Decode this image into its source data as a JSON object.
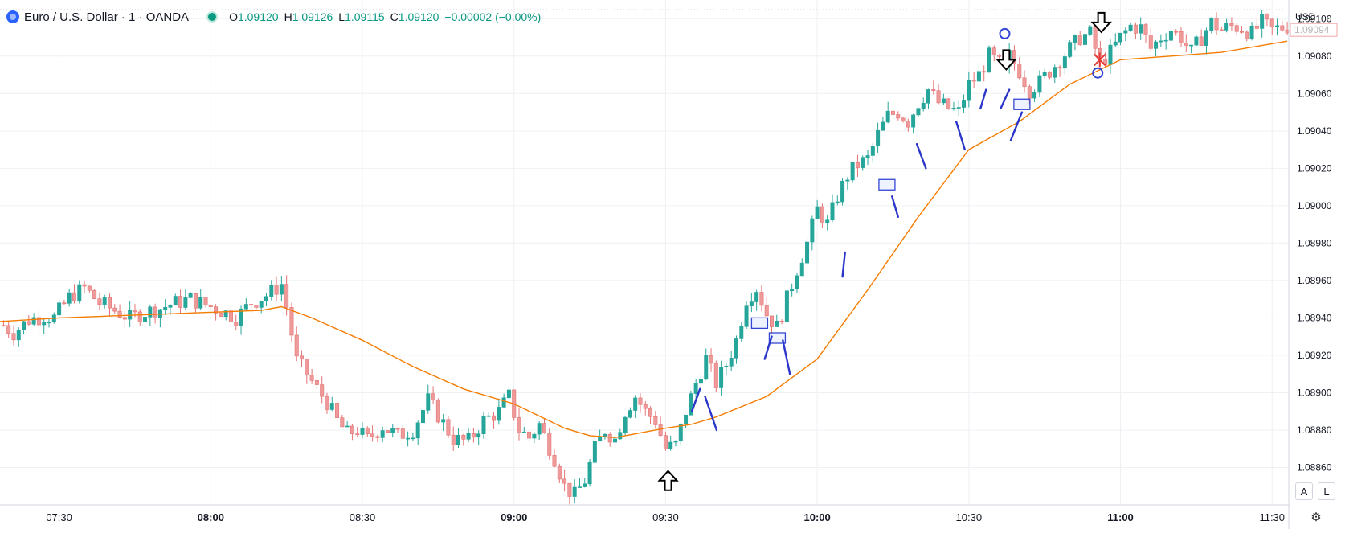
{
  "legend": {
    "symbol": "Euro / U.S. Dollar · 1 · OANDA",
    "o_label": "O",
    "o_value": "1.09120",
    "h_label": "H",
    "h_value": "1.09126",
    "l_label": "L",
    "l_value": "1.09115",
    "c_label": "C",
    "c_value": "1.09120",
    "change": "−0.00002 (−0.00%)"
  },
  "currency_selector": "USD",
  "buttons": {
    "auto": "A",
    "log": "L"
  },
  "icons": {
    "settings": "gear-icon",
    "logo": "oanda-logo-icon"
  },
  "colors": {
    "up": "#26a69a",
    "down": "#ef9a9a",
    "ma": "#f57c00",
    "annotation": "#2a35c9",
    "marker": "#e53935"
  },
  "chart_data": {
    "type": "candlestick",
    "timeframe": "1 minute",
    "y_axis": {
      "range": [
        1.0884,
        1.0911
      ],
      "ticks": [
        "1.09100",
        "1.09080",
        "1.09060",
        "1.09040",
        "1.09020",
        "1.09000",
        "1.08980",
        "1.08960",
        "1.08940",
        "1.08920",
        "1.08900",
        "1.08880",
        "1.08860"
      ],
      "tick_values": [
        1.091,
        1.0908,
        1.0906,
        1.0904,
        1.0902,
        1.09,
        1.0898,
        1.0896,
        1.0894,
        1.0892,
        1.089,
        1.0888,
        1.0886
      ],
      "last_price": "1.09094",
      "last_price_value": 1.09094
    },
    "x_axis": {
      "ticks": [
        {
          "label": "07:30",
          "minute": 450
        },
        {
          "label": "08:00",
          "minute": 480,
          "bold": true
        },
        {
          "label": "08:30",
          "minute": 510
        },
        {
          "label": "09:00",
          "minute": 540,
          "bold": true
        },
        {
          "label": "09:30",
          "minute": 570
        },
        {
          "label": "10:00",
          "minute": 600,
          "bold": true
        },
        {
          "label": "10:30",
          "minute": 630
        },
        {
          "label": "11:00",
          "minute": 660,
          "bold": true
        },
        {
          "label": "11:30",
          "minute": 690
        }
      ],
      "range_minutes": [
        438.3,
        693.3
      ]
    },
    "price_path": [
      [
        438,
        1.08938
      ],
      [
        441,
        1.08932
      ],
      [
        444,
        1.08939
      ],
      [
        447,
        1.08941
      ],
      [
        449,
        1.0894
      ],
      [
        452,
        1.08951
      ],
      [
        455,
        1.08956
      ],
      [
        458,
        1.08948
      ],
      [
        461,
        1.08944
      ],
      [
        464,
        1.0894
      ],
      [
        467,
        1.08943
      ],
      [
        470,
        1.08945
      ],
      [
        473,
        1.08948
      ],
      [
        476,
        1.0895
      ],
      [
        479,
        1.08947
      ],
      [
        482,
        1.08944
      ],
      [
        485,
        1.0894
      ],
      [
        488,
        1.08948
      ],
      [
        491,
        1.08952
      ],
      [
        494,
        1.08958
      ],
      [
        495,
        1.08946
      ],
      [
        497,
        1.08917
      ],
      [
        499,
        1.0891
      ],
      [
        501,
        1.08902
      ],
      [
        503,
        1.08895
      ],
      [
        505,
        1.08885
      ],
      [
        507,
        1.08878
      ],
      [
        509,
        1.0888
      ],
      [
        511,
        1.08875
      ],
      [
        514,
        1.08882
      ],
      [
        517,
        1.08877
      ],
      [
        520,
        1.0888
      ],
      [
        523,
        1.08896
      ],
      [
        525,
        1.08888
      ],
      [
        528,
        1.08875
      ],
      [
        531,
        1.08874
      ],
      [
        534,
        1.08885
      ],
      [
        537,
        1.0889
      ],
      [
        539,
        1.08898
      ],
      [
        541,
        1.0888
      ],
      [
        543,
        1.08876
      ],
      [
        545,
        1.08883
      ],
      [
        548,
        1.08865
      ],
      [
        550,
        1.0885
      ],
      [
        552,
        1.08845
      ],
      [
        554,
        1.08853
      ],
      [
        556,
        1.0887
      ],
      [
        558,
        1.0888
      ],
      [
        560,
        1.08875
      ],
      [
        562,
        1.0889
      ],
      [
        564,
        1.08898
      ],
      [
        566,
        1.0889
      ],
      [
        568,
        1.08885
      ],
      [
        570,
        1.0887
      ],
      [
        572,
        1.08872
      ],
      [
        574,
        1.0889
      ],
      [
        576,
        1.08905
      ],
      [
        578,
        1.08918
      ],
      [
        580,
        1.08905
      ],
      [
        582,
        1.08915
      ],
      [
        584,
        1.08928
      ],
      [
        586,
        1.0895
      ],
      [
        588,
        1.08956
      ],
      [
        590,
        1.08942
      ],
      [
        592,
        1.08935
      ],
      [
        594,
        1.0895
      ],
      [
        596,
        1.08966
      ],
      [
        598,
        1.0898
      ],
      [
        600,
        1.08998
      ],
      [
        602,
        1.0899
      ],
      [
        604,
        1.09005
      ],
      [
        606,
        1.09016
      ],
      [
        608,
        1.09022
      ],
      [
        610,
        1.09025
      ],
      [
        612,
        1.09038
      ],
      [
        614,
        1.09048
      ],
      [
        616,
        1.0905
      ],
      [
        618,
        1.09045
      ],
      [
        620,
        1.09055
      ],
      [
        622,
        1.09062
      ],
      [
        624,
        1.09055
      ],
      [
        626,
        1.09052
      ],
      [
        628,
        1.0905
      ],
      [
        630,
        1.09065
      ],
      [
        632,
        1.0907
      ],
      [
        634,
        1.0908
      ],
      [
        636,
        1.09076
      ],
      [
        637,
        1.09072
      ],
      [
        638,
        1.0908
      ],
      [
        640,
        1.09072
      ],
      [
        642,
        1.09062
      ],
      [
        644,
        1.09066
      ],
      [
        646,
        1.09072
      ],
      [
        648,
        1.09078
      ],
      [
        650,
        1.09084
      ],
      [
        652,
        1.0909
      ],
      [
        654,
        1.09092
      ],
      [
        656,
        1.09076
      ],
      [
        658,
        1.09082
      ],
      [
        660,
        1.0909
      ],
      [
        662,
        1.09096
      ],
      [
        664,
        1.09095
      ],
      [
        666,
        1.09084
      ],
      [
        668,
        1.0909
      ],
      [
        670,
        1.09094
      ],
      [
        672,
        1.0909
      ],
      [
        674,
        1.09082
      ],
      [
        676,
        1.0909
      ],
      [
        678,
        1.09098
      ],
      [
        680,
        1.09094
      ],
      [
        682,
        1.09096
      ],
      [
        684,
        1.09095
      ],
      [
        686,
        1.09092
      ],
      [
        688,
        1.09098
      ],
      [
        690,
        1.09094
      ],
      [
        693,
        1.09096
      ]
    ],
    "moving_average": [
      [
        438,
        1.08938
      ],
      [
        450,
        1.0894
      ],
      [
        470,
        1.08942
      ],
      [
        480,
        1.08943
      ],
      [
        490,
        1.08944
      ],
      [
        494,
        1.08946
      ],
      [
        500,
        1.0894
      ],
      [
        510,
        1.08928
      ],
      [
        520,
        1.08914
      ],
      [
        530,
        1.08902
      ],
      [
        540,
        1.08894
      ],
      [
        550,
        1.08881
      ],
      [
        555,
        1.08877
      ],
      [
        560,
        1.08876
      ],
      [
        570,
        1.08881
      ],
      [
        575,
        1.08883
      ],
      [
        580,
        1.08887
      ],
      [
        590,
        1.08898
      ],
      [
        600,
        1.08918
      ],
      [
        610,
        1.08955
      ],
      [
        620,
        1.08994
      ],
      [
        630,
        1.0903
      ],
      [
        640,
        1.09045
      ],
      [
        650,
        1.09065
      ],
      [
        660,
        1.09078
      ],
      [
        670,
        1.0908
      ],
      [
        680,
        1.09082
      ],
      [
        693,
        1.09088
      ]
    ],
    "annotations": {
      "arrows": [
        {
          "direction": "up",
          "minute": 570.5,
          "price": 1.08853
        },
        {
          "direction": "down",
          "minute": 637.4,
          "price": 1.09078
        },
        {
          "direction": "down",
          "minute": 656.2,
          "price": 1.09098
        }
      ],
      "circles": [
        {
          "minute": 637.1,
          "price": 1.09092
        },
        {
          "minute": 655.5,
          "price": 1.09071
        }
      ],
      "cross": {
        "minute": 655.9,
        "price": 1.09078
      },
      "boxes": [
        {
          "minute": 588.6,
          "price": 1.08937
        },
        {
          "minute": 592.1,
          "price": 1.08929
        },
        {
          "minute": 613.8,
          "price": 1.09011
        },
        {
          "minute": 640.5,
          "price": 1.09054
        }
      ],
      "strokes": [
        {
          "from": [
            575.2,
            1.0889
          ],
          "to": [
            576.8,
            1.08902
          ]
        },
        {
          "from": [
            577.8,
            1.08898
          ],
          "to": [
            580.1,
            1.0888
          ]
        },
        {
          "from": [
            589.6,
            1.08918
          ],
          "to": [
            591.0,
            1.0893
          ]
        },
        {
          "from": [
            593.2,
            1.08928
          ],
          "to": [
            594.6,
            1.0891
          ]
        },
        {
          "from": [
            605.0,
            1.08962
          ],
          "to": [
            605.5,
            1.08975
          ]
        },
        {
          "from": [
            614.8,
            1.09005
          ],
          "to": [
            616.0,
            1.08994
          ]
        },
        {
          "from": [
            619.7,
            1.09033
          ],
          "to": [
            621.5,
            1.0902
          ]
        },
        {
          "from": [
            627.5,
            1.09045
          ],
          "to": [
            629.2,
            1.0903
          ]
        },
        {
          "from": [
            632.3,
            1.09052
          ],
          "to": [
            633.4,
            1.09062
          ]
        },
        {
          "from": [
            636.3,
            1.09052
          ],
          "to": [
            638.0,
            1.09062
          ]
        },
        {
          "from": [
            638.3,
            1.09035
          ],
          "to": [
            640.5,
            1.0905
          ]
        }
      ]
    }
  }
}
